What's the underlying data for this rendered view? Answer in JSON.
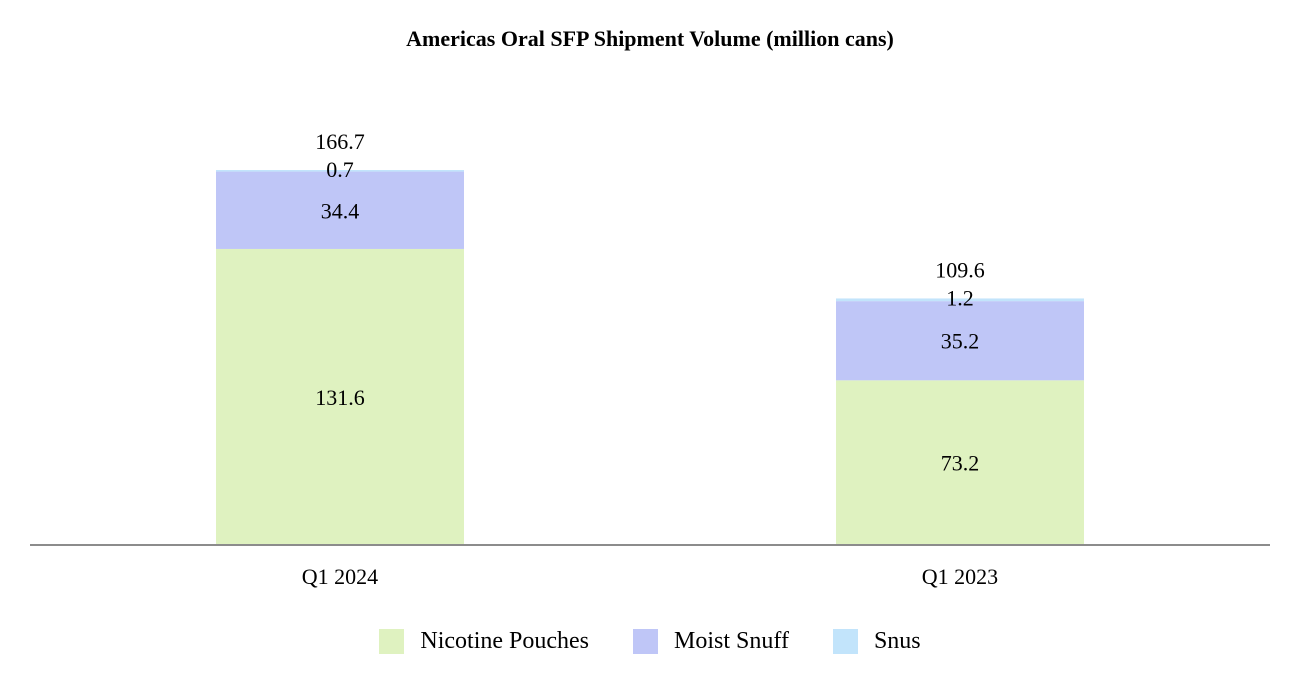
{
  "chart_data": {
    "type": "bar",
    "stacked": true,
    "title": "Americas Oral SFP Shipment Volume (million cans)",
    "categories": [
      "Q1 2024",
      "Q1 2023"
    ],
    "series": [
      {
        "name": "Nicotine Pouches",
        "values": [
          131.6,
          73.2
        ],
        "labels": [
          "131.6",
          "73.2"
        ],
        "color": "#dff2c0"
      },
      {
        "name": "Moist Snuff",
        "values": [
          34.4,
          35.2
        ],
        "labels": [
          "34.4",
          "35.2"
        ],
        "color": "#bfc6f7"
      },
      {
        "name": "Snus",
        "values": [
          0.7,
          1.2
        ],
        "labels": [
          "0.7",
          "1.2"
        ],
        "color": "#c2e4fb"
      }
    ],
    "totals": [
      "166.7",
      "109.6"
    ],
    "ylim": [
      0,
      166.7
    ],
    "legend_position": "bottom"
  }
}
